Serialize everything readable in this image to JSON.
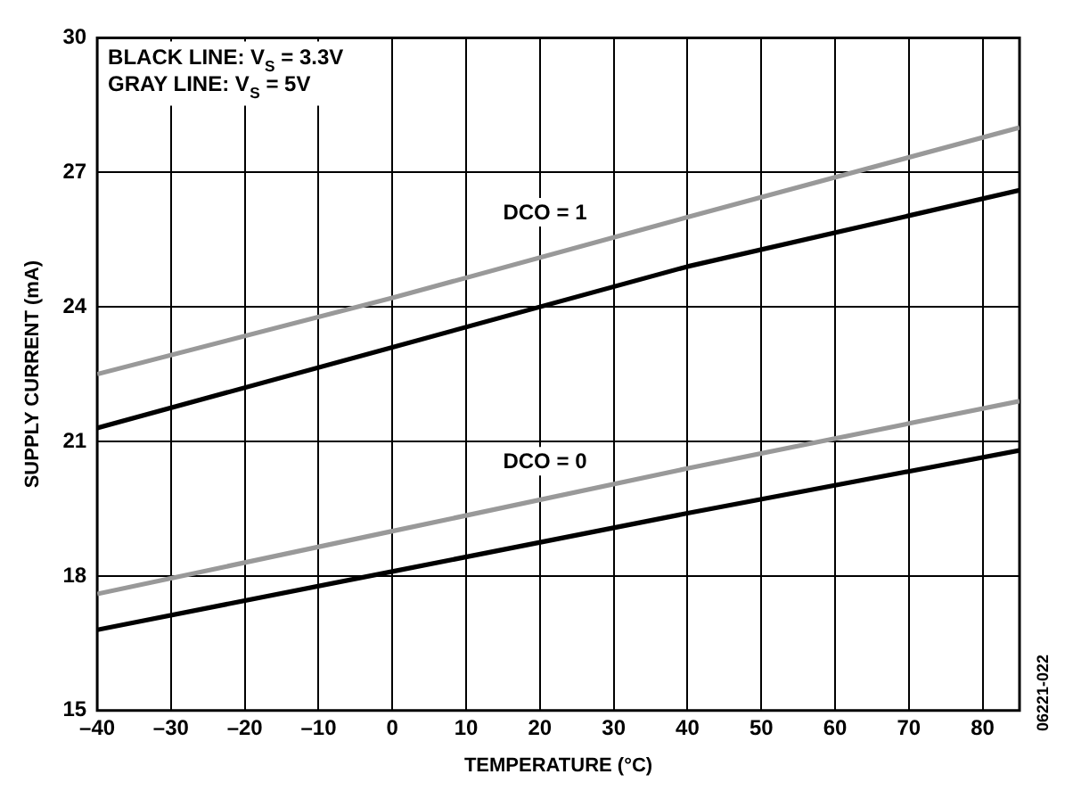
{
  "chart_data": {
    "type": "line",
    "xlabel": "TEMPERATURE (°C)",
    "ylabel": "SUPPLY CURRENT (mA)",
    "xlim": [
      -40,
      85
    ],
    "xticks": [
      {
        "value": -40,
        "label": "–40"
      },
      {
        "value": -30,
        "label": "–30"
      },
      {
        "value": -20,
        "label": "–20"
      },
      {
        "value": -10,
        "label": "–10"
      },
      0,
      10,
      20,
      30,
      40,
      50,
      60,
      70,
      80
    ],
    "ylim": [
      15,
      30
    ],
    "yticks": [
      15,
      18,
      21,
      24,
      27,
      30
    ],
    "grid": true,
    "legend": false,
    "marker": "none",
    "line_style": "solid",
    "series": [
      {
        "color": "#999999",
        "x": [
          -40,
          0,
          40,
          85
        ],
        "values": [
          22.5,
          24.2,
          26.0,
          28.0
        ]
      },
      {
        "color": "#000000",
        "x": [
          -40,
          0,
          40,
          85
        ],
        "values": [
          21.3,
          23.1,
          24.9,
          26.6
        ]
      },
      {
        "color": "#999999",
        "x": [
          -40,
          0,
          40,
          85
        ],
        "values": [
          17.6,
          19.0,
          20.4,
          21.9
        ]
      },
      {
        "color": "#000000",
        "x": [
          -40,
          0,
          40,
          85
        ],
        "values": [
          16.8,
          18.1,
          19.4,
          20.8
        ]
      }
    ],
    "annotations": [
      "BLACK LINE: V$_{S}$ = 3.3V",
      "GRAY LINE: V$_{S}$ = 5V",
      "DCO = 1",
      "DCO = 0",
      "06221-022"
    ]
  }
}
